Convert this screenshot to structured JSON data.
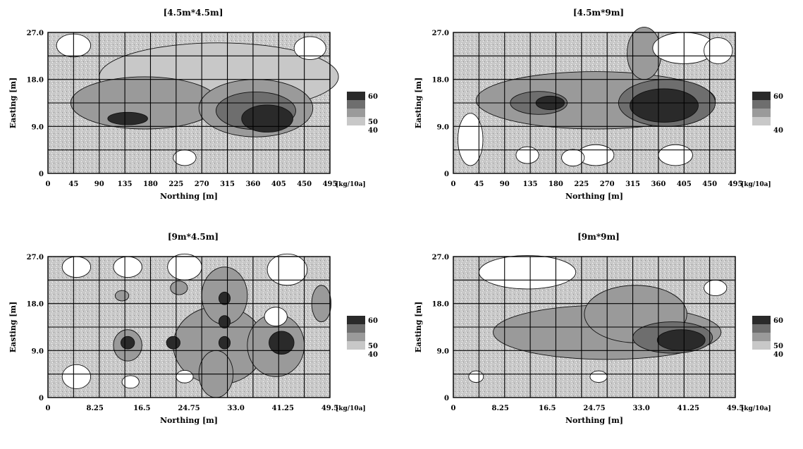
{
  "colors": {
    "low": "#ffffff",
    "mid_low": "#c8c8c8",
    "mid": "#9a9a9a",
    "mid_high": "#6e6e6e",
    "high": "#2a2a2a",
    "grid": "#000000"
  },
  "chart_data": [
    {
      "type": "heatmap",
      "title": "[4.5m*4.5m]",
      "xlabel": "Northing [m]",
      "ylabel": "Easting [m]",
      "unit": "[kg/10a]",
      "xticks": [
        "0",
        "45",
        "90",
        "135",
        "180",
        "225",
        "270",
        "315",
        "360",
        "405",
        "450",
        "495"
      ],
      "yticks": [
        "0",
        "9.0",
        "18.0",
        "27.0"
      ],
      "xlim": [
        0,
        49.5
      ],
      "ylim": [
        0,
        27.0
      ],
      "legend": [
        "60",
        "",
        "",
        "50",
        "40"
      ],
      "grid": true
    },
    {
      "type": "heatmap",
      "title": "[4.5m*9m]",
      "xlabel": "Northing [m]",
      "ylabel": "Easting [m]",
      "unit": "[kg/10a]",
      "xticks": [
        "0",
        "45",
        "90",
        "135",
        "180",
        "225",
        "270",
        "315",
        "360",
        "405",
        "450",
        "495"
      ],
      "yticks": [
        "0",
        "9.0",
        "18.0",
        "27.0"
      ],
      "xlim": [
        0,
        49.5
      ],
      "ylim": [
        0,
        27.0
      ],
      "legend": [
        "60",
        "",
        "",
        "",
        "40"
      ],
      "grid": true
    },
    {
      "type": "heatmap",
      "title": "[9m*4.5m]",
      "xlabel": "Northing [m]",
      "ylabel": "Easting [m]",
      "unit": "[kg/10a]",
      "xticks": [
        "0",
        "8.25",
        "16.5",
        "24.75",
        "33.0",
        "41.25",
        "49.5"
      ],
      "yticks": [
        "0",
        "9.0",
        "18.0",
        "27.0"
      ],
      "xlim": [
        0,
        49.5
      ],
      "ylim": [
        0,
        27.0
      ],
      "legend": [
        "60",
        "",
        "",
        "50",
        "40"
      ],
      "grid": true
    },
    {
      "type": "heatmap",
      "title": "[9m*9m]",
      "xlabel": "Northing [m]",
      "ylabel": "Easting [m]",
      "unit": "[kg/10a]",
      "xticks": [
        "0",
        "8.25",
        "16.5",
        "24.75",
        "33.0",
        "41.25",
        "49.5"
      ],
      "yticks": [
        "0",
        "9.0",
        "18.0",
        "27.0"
      ],
      "xlim": [
        0,
        49.5
      ],
      "ylim": [
        0,
        27.0
      ],
      "legend": [
        "60",
        "",
        "",
        "50",
        "40"
      ],
      "grid": true
    }
  ]
}
